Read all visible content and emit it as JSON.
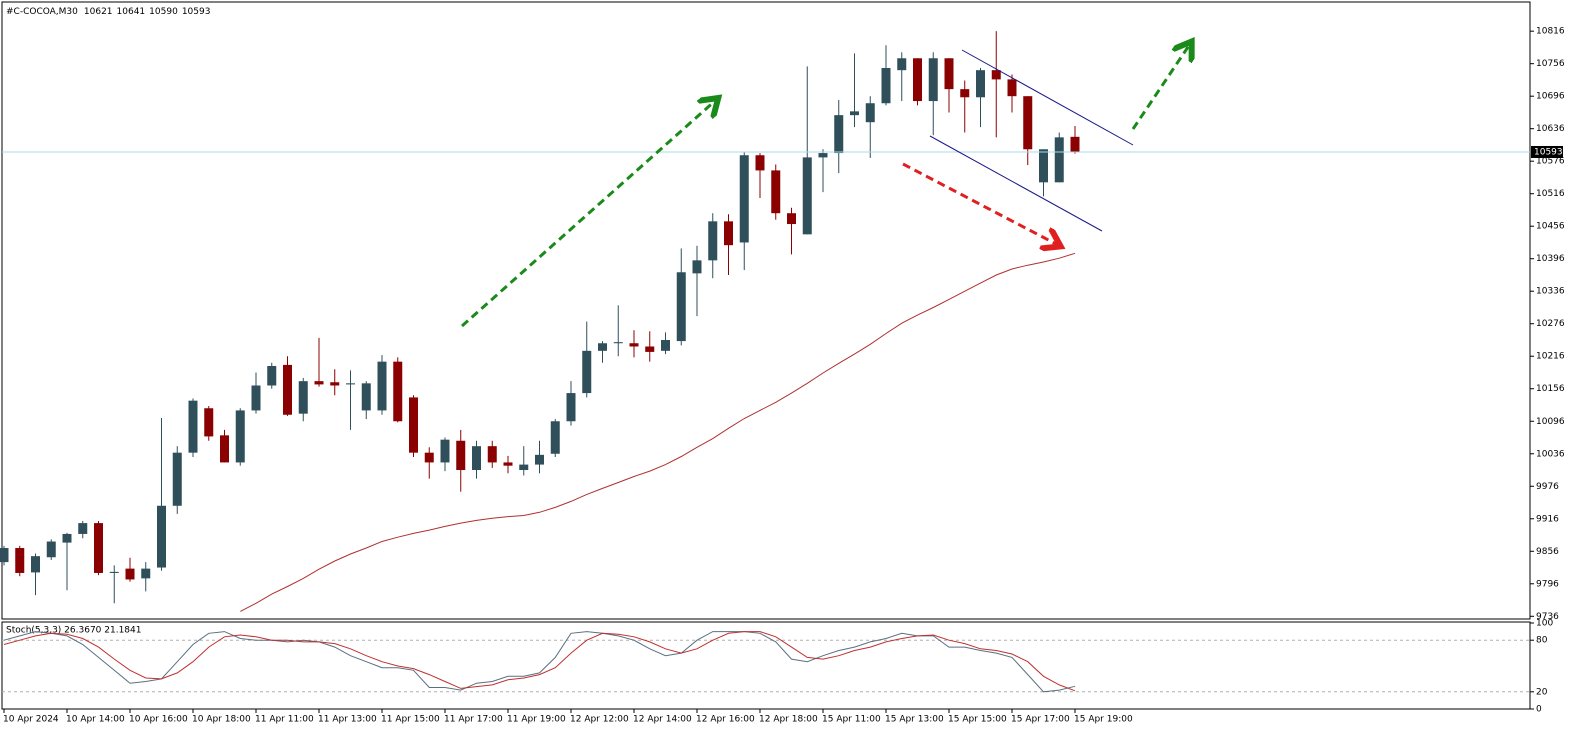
{
  "chart_data": [
    {
      "type": "candlestick",
      "title": "#C-COCOA,M30",
      "categories": [
        "10 Apr 2024",
        null,
        null,
        null,
        "10 Apr 14:00",
        null,
        null,
        null,
        "10 Apr 16:00",
        null,
        null,
        null,
        "10 Apr 18:00",
        null,
        null,
        null,
        "11 Apr 11:00",
        null,
        null,
        null,
        "11 Apr 13:00",
        null,
        null,
        null,
        "11 Apr 15:00",
        null,
        null,
        null,
        "11 Apr 17:00",
        null,
        null,
        null,
        "11 Apr 19:00",
        null,
        null,
        null,
        "12 Apr 12:00",
        null,
        null,
        null,
        "12 Apr 14:00",
        null,
        null,
        null,
        "12 Apr 16:00",
        null,
        null,
        null,
        "12 Apr 18:00",
        null,
        null,
        null,
        "15 Apr 11:00",
        null,
        null,
        null,
        "15 Apr 13:00",
        null,
        null,
        null,
        "15 Apr 15:00",
        null,
        null,
        null,
        "15 Apr 17:00",
        null,
        null,
        null,
        "15 Apr 19:00"
      ],
      "open": [
        9836,
        9862,
        9817,
        9845,
        9872,
        9888,
        9908,
        9816,
        9824,
        9806,
        9826,
        9940,
        10038,
        10120,
        10070,
        10020,
        10116,
        10162,
        10200,
        10110,
        10170,
        10168,
        10164,
        10116,
        10116,
        10206,
        10140,
        10038,
        10020,
        10060,
        10006,
        10050,
        10020,
        10006,
        10016,
        10036,
        10096,
        10148,
        10226,
        10240,
        10240,
        10234,
        10226,
        10244,
        10369,
        10393,
        10465,
        10426,
        10587,
        10559,
        10480,
        10441,
        10583,
        10591,
        10661,
        10648,
        10683,
        10744,
        10766,
        10687,
        10766,
        10709,
        10694,
        10744,
        10727,
        10696,
        10537,
        10537,
        10621
      ],
      "high": [
        9866,
        9866,
        9852,
        9878,
        9890,
        9912,
        9912,
        9830,
        9844,
        9836,
        10102,
        10050,
        10138,
        10124,
        10080,
        10120,
        10186,
        10204,
        10216,
        10176,
        10250,
        10192,
        10190,
        10170,
        10218,
        10214,
        10144,
        10048,
        10066,
        10080,
        10060,
        10060,
        10032,
        10050,
        10060,
        10100,
        10170,
        10280,
        10244,
        10310,
        10264,
        10262,
        10260,
        10415,
        10420,
        10480,
        10478,
        10593,
        10591,
        10570,
        10490,
        10751,
        10598,
        10689,
        10775,
        10696,
        10790,
        10777,
        10766,
        10777,
        10766,
        10725,
        10748,
        10816,
        10736,
        10696,
        10598,
        10629,
        10641
      ],
      "low": [
        9830,
        9810,
        9775,
        9840,
        9784,
        9880,
        9812,
        9760,
        9800,
        9782,
        9820,
        9925,
        10030,
        10060,
        10020,
        10014,
        10110,
        10156,
        10106,
        10096,
        10160,
        10144,
        10080,
        10100,
        10108,
        10094,
        10030,
        9990,
        10004,
        9966,
        9990,
        10010,
        10000,
        9996,
        10000,
        10030,
        10088,
        10140,
        10204,
        10216,
        10214,
        10206,
        10220,
        10236,
        10290,
        10360,
        10366,
        10375,
        10508,
        10468,
        10404,
        10441,
        10519,
        10554,
        10639,
        10582,
        10679,
        10687,
        10679,
        10624,
        10666,
        10629,
        10639,
        10620,
        10666,
        10569,
        10511,
        10537,
        10590
      ],
      "close": [
        9862,
        9816,
        9847,
        9874,
        9888,
        9908,
        9816,
        9818,
        9804,
        9824,
        9940,
        10038,
        10134,
        10068,
        10020,
        10116,
        10162,
        10198,
        10108,
        10170,
        10164,
        10162,
        10166,
        10166,
        10206,
        10096,
        10038,
        10020,
        10062,
        10006,
        10050,
        10020,
        10014,
        10016,
        10034,
        10096,
        10148,
        10226,
        10240,
        10242,
        10234,
        10224,
        10246,
        10371,
        10393,
        10465,
        10421,
        10587,
        10559,
        10480,
        10460,
        10583,
        10591,
        10661,
        10668,
        10683,
        10748,
        10766,
        10687,
        10766,
        10709,
        10694,
        10744,
        10727,
        10696,
        10598,
        10598,
        10620,
        10593
      ],
      "up_color": "#2f4f5a",
      "down_color": "#8b0000",
      "series": [
        {
          "color": "#b03030",
          "values": [
            null,
            null,
            null,
            null,
            null,
            null,
            null,
            null,
            null,
            null,
            null,
            null,
            null,
            null,
            null,
            9745,
            9760,
            9777,
            9791,
            9806,
            9823,
            9838,
            9851,
            9862,
            9874,
            9882,
            9889,
            9895,
            9902,
            9908,
            9913,
            9917,
            9920,
            9922,
            9928,
            9937,
            9948,
            9961,
            9972,
            9983,
            9994,
            10004,
            10016,
            10031,
            10048,
            10064,
            10083,
            10101,
            10116,
            10131,
            10148,
            10166,
            10185,
            10203,
            10220,
            10238,
            10258,
            10277,
            10292,
            10306,
            10321,
            10336,
            10351,
            10366,
            10377,
            10384,
            10390,
            10397,
            10406
          ]
        }
      ],
      "price_line_color": "#a8d8e8",
      "ylim": [
        9731,
        10868
      ],
      "yticks": [
        10816,
        10756,
        10696,
        10636,
        10576,
        10516,
        10456,
        10396,
        10336,
        10276,
        10216,
        10156,
        10096,
        10036,
        9976,
        9916,
        9856,
        9796,
        9736
      ]
    },
    {
      "type": "line",
      "title": "Stoch(5,3,3) 26.3670 21.1841",
      "series": [
        {
          "color": "#5a7080",
          "values": [
            80,
            85,
            90,
            88,
            85,
            75,
            60,
            45,
            30,
            32,
            35,
            55,
            75,
            88,
            90,
            82,
            80,
            80,
            78,
            80,
            78,
            72,
            62,
            55,
            48,
            48,
            45,
            25,
            25,
            22,
            30,
            32,
            38,
            38,
            42,
            60,
            88,
            90,
            88,
            85,
            80,
            70,
            62,
            65,
            80,
            90,
            90,
            90,
            88,
            78,
            58,
            55,
            62,
            68,
            72,
            78,
            82,
            88,
            85,
            85,
            72,
            72,
            68,
            65,
            60,
            40,
            20,
            22,
            26.367
          ]
        },
        {
          "color": "#c03030",
          "values": [
            75,
            80,
            85,
            88,
            87,
            82,
            72,
            58,
            45,
            36,
            35,
            42,
            55,
            72,
            84,
            86,
            84,
            80,
            80,
            78,
            78,
            76,
            70,
            62,
            55,
            50,
            47,
            40,
            32,
            24,
            26,
            28,
            34,
            36,
            40,
            48,
            65,
            80,
            88,
            87,
            84,
            78,
            70,
            65,
            70,
            80,
            88,
            90,
            90,
            84,
            72,
            60,
            58,
            62,
            68,
            72,
            78,
            82,
            85,
            86,
            80,
            76,
            70,
            68,
            64,
            55,
            38,
            28,
            21.1841
          ]
        }
      ],
      "level_color": "#b0b0b0",
      "ylim": [
        0,
        100
      ],
      "yticks": [
        0,
        20,
        80,
        100
      ]
    }
  ]
}
